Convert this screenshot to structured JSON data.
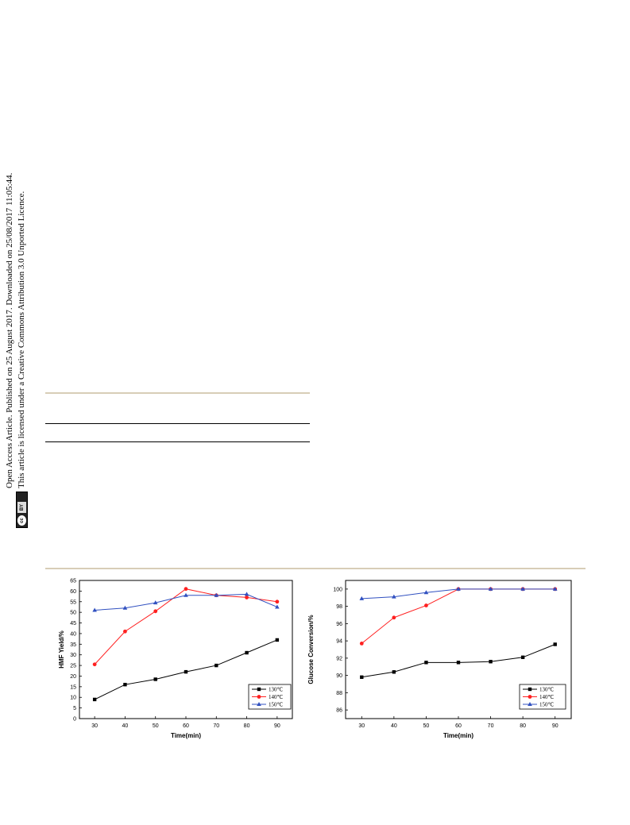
{
  "side_notice": {
    "line1": "Open Access Article. Published on 25 August 2017. Downloaded on 25/08/2017 11:05:44.",
    "line2": "This article is licensed under a Creative Commons Attribution 3.0 Unported Licence.",
    "badge_cc": "cc",
    "badge_by": "BY"
  },
  "chart_data": [
    {
      "type": "line",
      "xlabel": "Time(min)",
      "ylabel": "HMF Yield/%",
      "x": [
        30,
        40,
        50,
        60,
        70,
        80,
        90
      ],
      "xlim": [
        25,
        95
      ],
      "ylim": [
        0,
        65
      ],
      "xticks": [
        30,
        40,
        50,
        60,
        70,
        80,
        90
      ],
      "yticks": [
        0,
        5,
        10,
        15,
        20,
        25,
        30,
        35,
        40,
        45,
        50,
        55,
        60,
        65
      ],
      "legend_position": "bottom-right",
      "series": [
        {
          "name": "130℃",
          "color": "#000000",
          "marker": "square",
          "values": [
            9,
            16,
            18.5,
            22,
            25,
            31,
            37
          ]
        },
        {
          "name": "140℃",
          "color": "#ff2020",
          "marker": "circle",
          "values": [
            25.5,
            41,
            50.5,
            61,
            58,
            57,
            55
          ]
        },
        {
          "name": "150℃",
          "color": "#3050c0",
          "marker": "triangle",
          "values": [
            51,
            52,
            54.5,
            58,
            58,
            58.5,
            52.5
          ]
        }
      ]
    },
    {
      "type": "line",
      "xlabel": "Time(min)",
      "ylabel": "Glucose Conversion/%",
      "x": [
        30,
        40,
        50,
        60,
        70,
        80,
        90
      ],
      "xlim": [
        25,
        95
      ],
      "ylim": [
        85,
        101
      ],
      "xticks": [
        30,
        40,
        50,
        60,
        70,
        80,
        90
      ],
      "yticks": [
        86,
        88,
        90,
        92,
        94,
        96,
        98,
        100
      ],
      "legend_position": "bottom-right",
      "series": [
        {
          "name": "130℃",
          "color": "#000000",
          "marker": "square",
          "values": [
            89.8,
            90.4,
            91.5,
            91.5,
            91.6,
            92.1,
            93.6
          ]
        },
        {
          "name": "140℃",
          "color": "#ff2020",
          "marker": "circle",
          "values": [
            93.7,
            96.7,
            98.1,
            100,
            100,
            100,
            100
          ]
        },
        {
          "name": "150℃",
          "color": "#3050c0",
          "marker": "triangle",
          "values": [
            98.9,
            99.1,
            99.6,
            100,
            100,
            100,
            100
          ]
        }
      ]
    }
  ]
}
